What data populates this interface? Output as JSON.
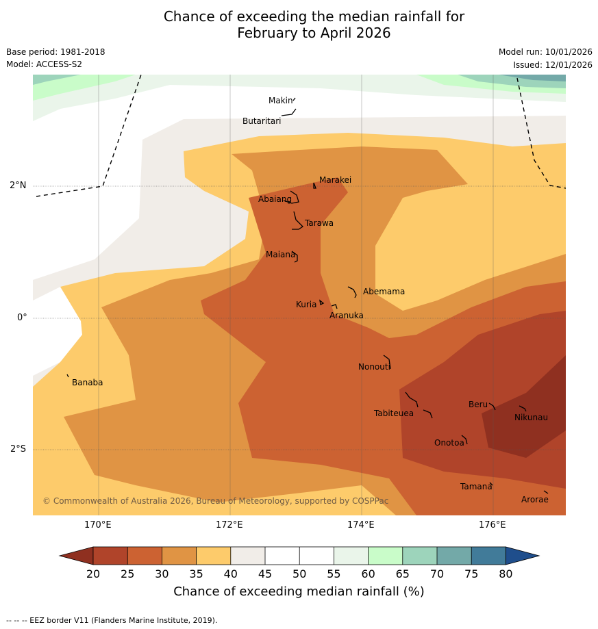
{
  "title_line1": "Chance of exceeding the median rainfall for",
  "title_line2": "February to April 2026",
  "base_period": "Base period: 1981-2018",
  "model": "Model: ACCESS-S2",
  "model_run": "Model run: 10/01/2026",
  "issued": "Issued: 12/01/2026",
  "copyright": "© Commonwealth of Australia 2026, Bureau of Meteorology, supported by COSPPac",
  "lon_ticks": [
    "170°E",
    "172°E",
    "174°E",
    "176°E"
  ],
  "lat_ticks": [
    "2°N",
    "0°",
    "2°S"
  ],
  "places": [
    "Makin",
    "Butaritari",
    "Marakei",
    "Abaiang",
    "Tarawa",
    "Maiana",
    "Abemama",
    "Kuria",
    "Aranuka",
    "Banaba",
    "Nonouti",
    "Tabiteuea",
    "Beru",
    "Nikunau",
    "Onotoa",
    "Tamana",
    "Arorae"
  ],
  "colorbar": {
    "title": "Chance of exceeding median rainfall (%)",
    "labels": [
      "20",
      "25",
      "30",
      "35",
      "40",
      "45",
      "50",
      "55",
      "60",
      "65",
      "70",
      "75",
      "80"
    ],
    "under_color": "#8f3020",
    "over_color": "#1f4e8c",
    "colors": [
      "#b0442a",
      "#cc6232",
      "#e09444",
      "#fdcb6b",
      "#f1ede8",
      "#ffffff",
      "#ffffff",
      "#eaf5ea",
      "#c9fcc9",
      "#9dd4bb",
      "#73a9a8",
      "#417b99"
    ]
  },
  "eez_note": "--  --  -- EEZ border V11 (Flanders Marine Institute, 2019)."
}
